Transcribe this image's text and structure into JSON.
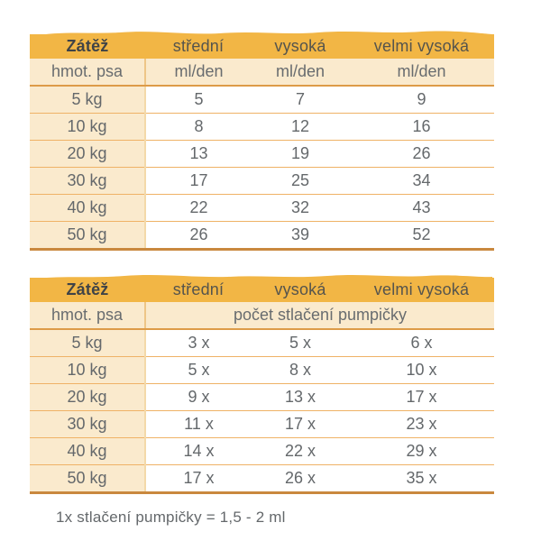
{
  "chart_data": [
    {
      "type": "table",
      "title": "",
      "header": [
        "Zátěž",
        "střední",
        "vysoká",
        "velmi vysoká"
      ],
      "subheader": [
        "hmot. psa",
        "ml/den",
        "ml/den",
        "ml/den"
      ],
      "rows": [
        [
          "5 kg",
          "5",
          "7",
          "9"
        ],
        [
          "10 kg",
          "8",
          "12",
          "16"
        ],
        [
          "20 kg",
          "13",
          "19",
          "26"
        ],
        [
          "30 kg",
          "17",
          "25",
          "34"
        ],
        [
          "40 kg",
          "22",
          "32",
          "43"
        ],
        [
          "50 kg",
          "26",
          "39",
          "52"
        ]
      ]
    },
    {
      "type": "table",
      "title": "",
      "header": [
        "Zátěž",
        "střední",
        "vysoká",
        "velmi vysoká"
      ],
      "subheader": [
        "hmot. psa",
        "počet stlačení pumpičky"
      ],
      "rows": [
        [
          "5 kg",
          "3 x",
          "5 x",
          "6 x"
        ],
        [
          "10 kg",
          "5 x",
          "8 x",
          "10 x"
        ],
        [
          "20 kg",
          "9 x",
          "13 x",
          "17 x"
        ],
        [
          "30 kg",
          "11 x",
          "17 x",
          "23 x"
        ],
        [
          "40 kg",
          "14 x",
          "22 x",
          "29 x"
        ],
        [
          "50 kg",
          "17 x",
          "26 x",
          "35 x"
        ]
      ]
    }
  ],
  "footer": {
    "note": "1x stlačení pumpičky = 1,5 - 2 ml"
  },
  "colors": {
    "header_gold": "#f2b645",
    "cream": "#faeacd",
    "subheader_line": "#dd9b48",
    "row_line": "#efb266",
    "bottom_border": "#c9883e",
    "text_gray": "#64686b",
    "text_dark": "#3f4347"
  }
}
